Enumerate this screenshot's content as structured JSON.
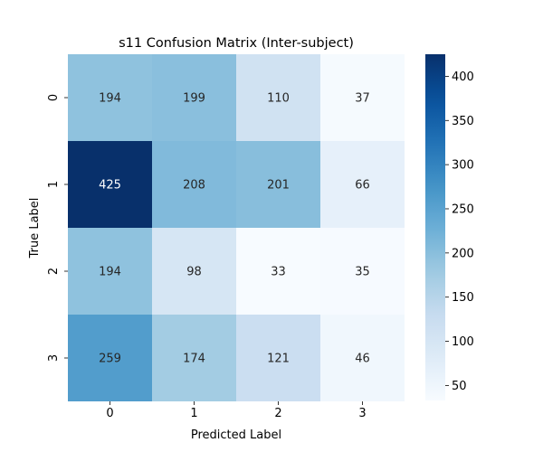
{
  "chart_data": {
    "type": "heatmap",
    "title": "s11 Confusion Matrix (Inter-subject)",
    "xlabel": "Predicted Label",
    "ylabel": "True Label",
    "x_categories": [
      "0",
      "1",
      "2",
      "3"
    ],
    "y_categories": [
      "0",
      "1",
      "2",
      "3"
    ],
    "values": [
      [
        194,
        199,
        110,
        37
      ],
      [
        425,
        208,
        201,
        66
      ],
      [
        194,
        98,
        33,
        35
      ],
      [
        259,
        174,
        121,
        46
      ]
    ],
    "colormap": "Blues",
    "vmin": 33,
    "vmax": 425,
    "colorbar_ticks": [
      "50",
      "100",
      "150",
      "200",
      "250",
      "300",
      "350",
      "400"
    ],
    "annotations": true
  }
}
